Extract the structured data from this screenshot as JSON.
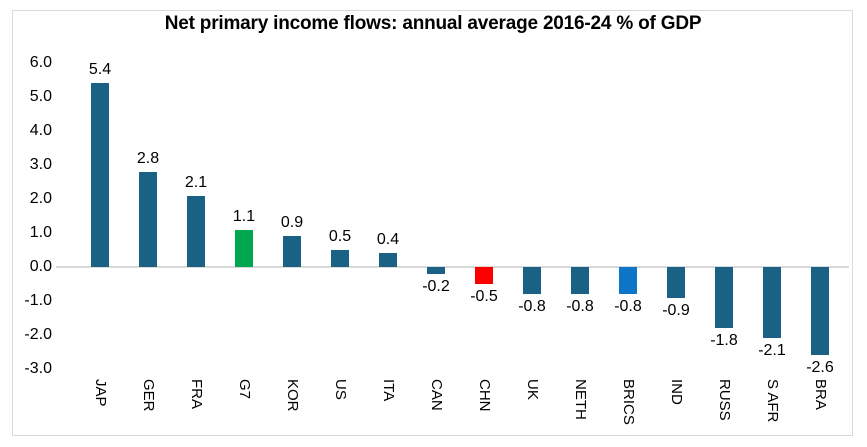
{
  "chart_data": {
    "type": "bar",
    "title": "Net primary income flows: annual average 2016-24 % of GDP",
    "categories": [
      "JAP",
      "GER",
      "FRA",
      "G7",
      "KOR",
      "US",
      "ITA",
      "CAN",
      "CHN",
      "UK",
      "NETH",
      "BRICS",
      "IND",
      "RUSS",
      "S AFR",
      "BRA"
    ],
    "values": [
      5.4,
      2.8,
      2.1,
      1.1,
      0.9,
      0.5,
      0.4,
      -0.2,
      -0.5,
      -0.8,
      -0.8,
      -0.8,
      -0.9,
      -1.8,
      -2.1,
      -2.6
    ],
    "data_labels": [
      "5.4",
      "2.8",
      "2.1",
      "1.1",
      "0.9",
      "0.5",
      "0.4",
      "-0.2",
      "-0.5",
      "-0.8",
      "-0.8",
      "-0.8",
      "-0.9",
      "-1.8",
      "-2.1",
      "-2.6"
    ],
    "bar_colors": [
      "#1A6284",
      "#1A6284",
      "#1A6284",
      "#00A74F",
      "#1A6284",
      "#1A6284",
      "#1A6284",
      "#1A6284",
      "#FC0000",
      "#1A6284",
      "#1A6284",
      "#0D75C8",
      "#1A6284",
      "#1A6284",
      "#1A6284",
      "#1A6284"
    ],
    "color_semantics": {
      "default": "#1A6284",
      "G7": "#00A74F",
      "CHN": "#FC0000",
      "BRICS": "#0D75C8"
    },
    "xlabel": "",
    "ylabel": "",
    "y_axis": {
      "ticks": [
        "6.0",
        "5.0",
        "4.0",
        "3.0",
        "2.0",
        "1.0",
        "0.0",
        "-1.0",
        "-2.0",
        "-3.0"
      ],
      "min": -3.0,
      "max": 6.0
    },
    "grid": "zero-line-only",
    "legend": "none",
    "frame_color": "#D9D9D9",
    "zero_line_color": "#D9D9D9",
    "text_color": "#000000",
    "background": "#FFFFFF"
  }
}
